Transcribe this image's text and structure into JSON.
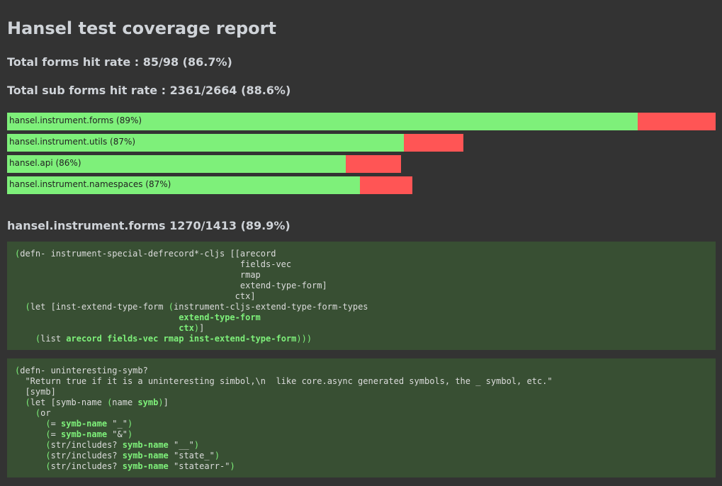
{
  "header": {
    "title": "Hansel test coverage report",
    "forms_rate": "Total forms hit rate : 85/98 (86.7%)",
    "sub_forms_rate": "Total sub forms hit rate : 2361/2664 (88.6%)"
  },
  "namespaces": [
    {
      "label": "hansel.instrument.forms (89%)",
      "hit": 890,
      "miss": 110
    },
    {
      "label": "hansel.instrument.utils (87%)",
      "hit": 560,
      "miss": 84
    },
    {
      "label": "hansel.api (86%)",
      "hit": 478,
      "miss": 78
    },
    {
      "label": "hansel.instrument.namespaces (87%)",
      "hit": 498,
      "miss": 74
    }
  ],
  "sections": [
    {
      "title": "hansel.instrument.forms 1270/1413 (89.9%)",
      "blocks": [
        {
          "lines": [
            [
              [
                "(",
                "g"
              ],
              [
                "defn- instrument-special-defrecord*-cljs [[arecord",
                "p"
              ]
            ],
            [
              [
                "                                            fields-vec",
                "p"
              ]
            ],
            [
              [
                "                                            rmap",
                "p"
              ]
            ],
            [
              [
                "                                            extend-type-form]",
                "p"
              ]
            ],
            [
              [
                "                                           ctx]",
                "p"
              ]
            ],
            [
              [
                "  ",
                "p"
              ],
              [
                "(",
                "g"
              ],
              [
                "let [inst-extend-type-form ",
                "p"
              ],
              [
                "(",
                "g"
              ],
              [
                "instrument-cljs-extend-type-form-types",
                "p"
              ]
            ],
            [
              [
                "                                ",
                "p"
              ],
              [
                "extend-type-form",
                "b"
              ]
            ],
            [
              [
                "                                ",
                "p"
              ],
              [
                "ctx",
                "b"
              ],
              [
                ")",
                "g"
              ],
              [
                "]",
                "p"
              ]
            ],
            [
              [
                "    ",
                "p"
              ],
              [
                "(",
                "g"
              ],
              [
                "list ",
                "p"
              ],
              [
                "arecord fields-vec rmap inst-extend-type-form",
                "b"
              ],
              [
                ")))",
                "g"
              ]
            ]
          ]
        },
        {
          "lines": [
            [
              [
                "(",
                "g"
              ],
              [
                "defn- uninteresting-symb?",
                "p"
              ]
            ],
            [
              [
                "  \"Return true if it is a uninteresting simbol,\\n  like core.async generated symbols, the _ symbol, etc.\"",
                "p"
              ]
            ],
            [
              [
                "  [symb]",
                "p"
              ]
            ],
            [
              [
                "  ",
                "p"
              ],
              [
                "(",
                "g"
              ],
              [
                "let [symb-name ",
                "p"
              ],
              [
                "(",
                "g"
              ],
              [
                "name ",
                "p"
              ],
              [
                "symb",
                "b"
              ],
              [
                ")",
                "g"
              ],
              [
                "]",
                "p"
              ]
            ],
            [
              [
                "    ",
                "p"
              ],
              [
                "(",
                "g"
              ],
              [
                "or",
                "p"
              ]
            ],
            [
              [
                "      ",
                "p"
              ],
              [
                "(",
                "g"
              ],
              [
                "= ",
                "p"
              ],
              [
                "symb-name",
                "b"
              ],
              [
                " \"_\"",
                "p"
              ],
              [
                ")",
                "g"
              ]
            ],
            [
              [
                "      ",
                "p"
              ],
              [
                "(",
                "g"
              ],
              [
                "= ",
                "p"
              ],
              [
                "symb-name",
                "b"
              ],
              [
                " \"&\"",
                "p"
              ],
              [
                ")",
                "g"
              ]
            ],
            [
              [
                "      ",
                "p"
              ],
              [
                "(",
                "g"
              ],
              [
                "str/includes? ",
                "p"
              ],
              [
                "symb-name",
                "b"
              ],
              [
                " \"__\"",
                "p"
              ],
              [
                ")",
                "g"
              ]
            ],
            [
              [
                "      ",
                "p"
              ],
              [
                "(",
                "g"
              ],
              [
                "str/includes? ",
                "p"
              ],
              [
                "symb-name",
                "b"
              ],
              [
                " \"state_\"",
                "p"
              ],
              [
                ")",
                "g"
              ]
            ],
            [
              [
                "      ",
                "p"
              ],
              [
                "(",
                "g"
              ],
              [
                "str/includes? ",
                "p"
              ],
              [
                "symb-name",
                "b"
              ],
              [
                " \"statearr-\"",
                "p"
              ],
              [
                ")",
                "g"
              ]
            ]
          ]
        }
      ]
    }
  ]
}
